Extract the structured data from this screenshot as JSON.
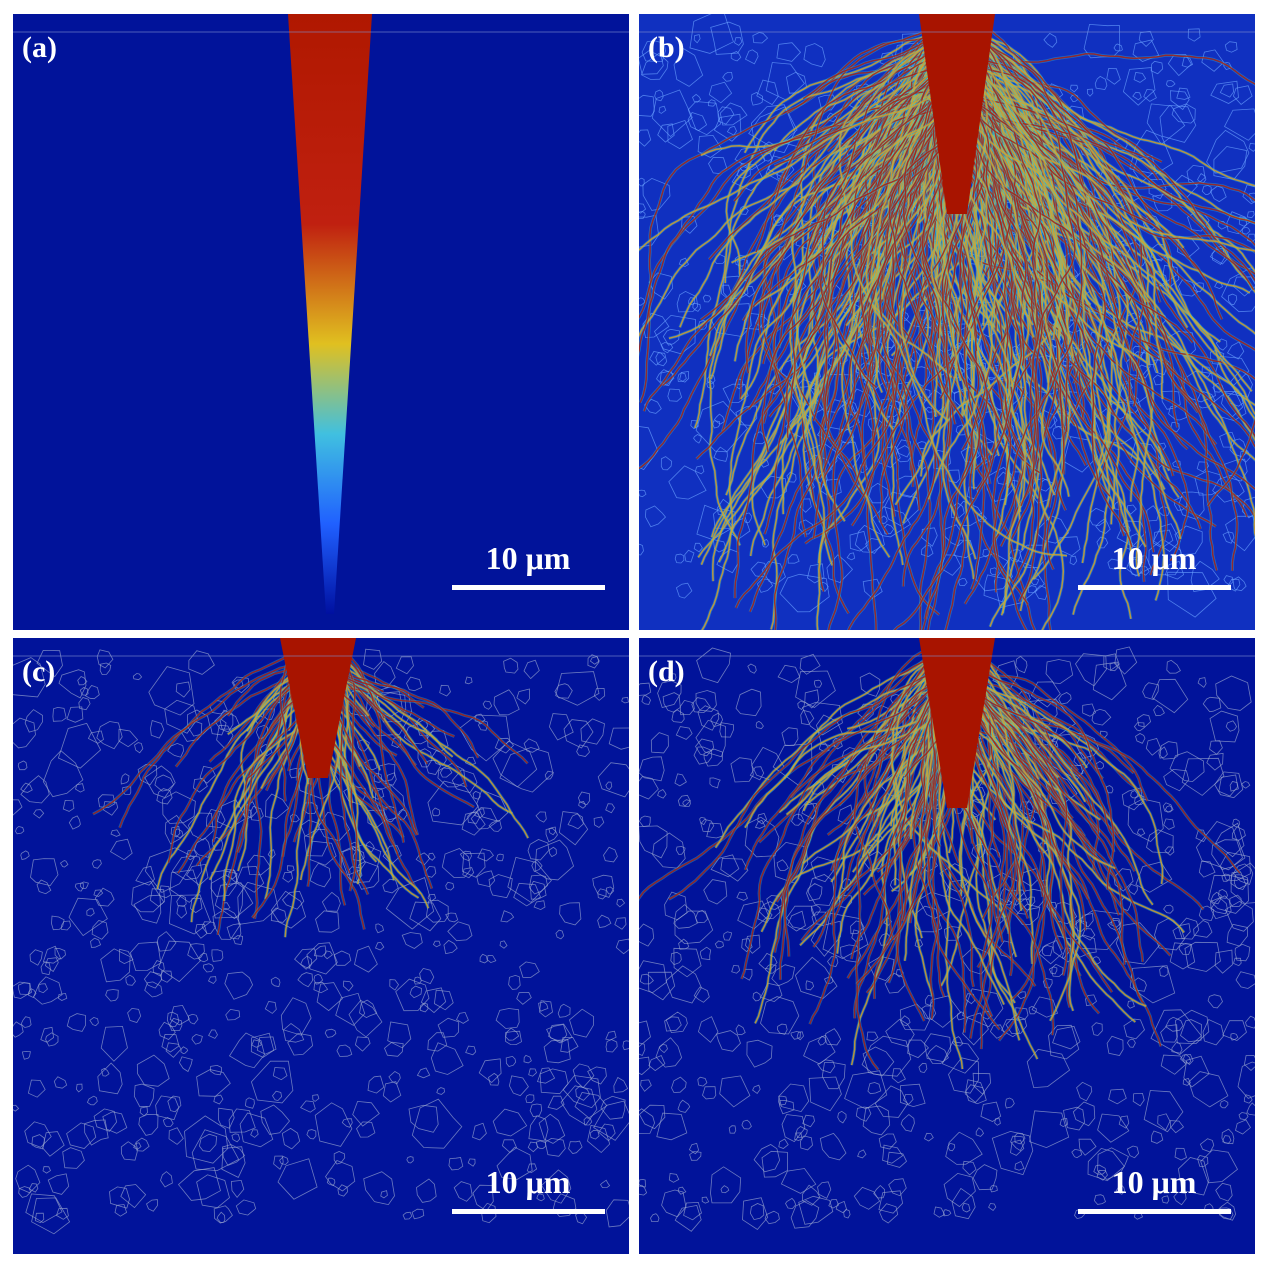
{
  "panels": [
    {
      "label": "(a)",
      "scale_bar": "10 μm"
    },
    {
      "label": "(b)",
      "scale_bar": "10 μm"
    },
    {
      "label": "(c)",
      "scale_bar": "10 μm"
    },
    {
      "label": "(d)",
      "scale_bar": "10 μm"
    }
  ]
}
